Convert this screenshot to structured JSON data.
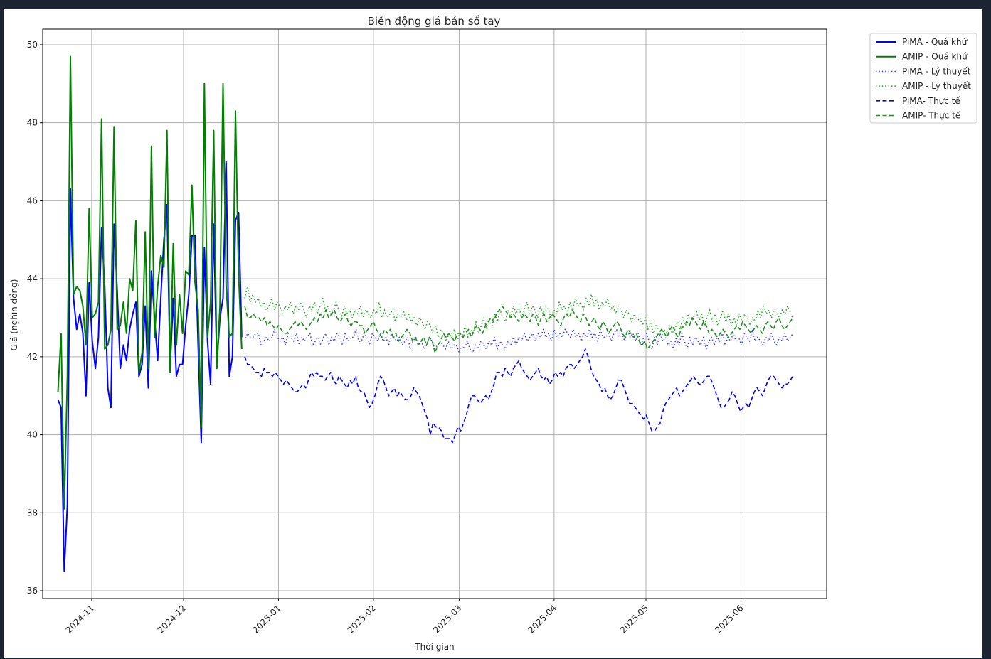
{
  "page": {
    "background": "#1b2430"
  },
  "chart_data": {
    "type": "line",
    "title": "Biến động giá bán sổ tay",
    "xlabel": "Thời gian",
    "ylabel": "Giá (nghìn đồng)",
    "xlim": [
      "2024-10-16",
      "2025-06-29"
    ],
    "ylim": [
      35.8,
      50.4
    ],
    "yticks": [
      36,
      38,
      40,
      42,
      44,
      46,
      48,
      50
    ],
    "ytick_labels": [
      "36",
      "38",
      "40",
      "42",
      "44",
      "46",
      "48",
      "50"
    ],
    "xticks": [
      "2024-11-01",
      "2024-12-01",
      "2025-01-01",
      "2025-02-01",
      "2025-03-01",
      "2025-04-01",
      "2025-05-01",
      "2025-06-01"
    ],
    "xtick_labels": [
      "2024-11",
      "2024-12",
      "2025-01",
      "2025-02",
      "2025-03",
      "2025-04",
      "2025-05",
      "2025-06"
    ],
    "grid": true,
    "legend_position": "outside-top-right",
    "series": [
      {
        "name": "PiMA - Quá khứ",
        "color": "#0000ff",
        "style": "solid",
        "start": "2024-10-21",
        "values": [
          40.9,
          40.7,
          36.5,
          38.2,
          46.3,
          43.5,
          42.7,
          43.1,
          42.6,
          41.0,
          43.9,
          42.4,
          41.7,
          42.5,
          45.3,
          43.8,
          41.2,
          40.7,
          45.4,
          43.7,
          41.7,
          42.3,
          41.9,
          42.7,
          43.1,
          43.4,
          41.5,
          41.8,
          43.3,
          41.2,
          44.2,
          43.0,
          41.9,
          43.5,
          45.0,
          45.9,
          41.7,
          43.5,
          41.5,
          41.8,
          41.8,
          42.8,
          43.6,
          45.1,
          45.1,
          42.3,
          39.8,
          44.8,
          42.4,
          41.3,
          45.4,
          41.8,
          43.0,
          43.5,
          47.0,
          41.5,
          42.0,
          45.5,
          45.7,
          42.5
        ]
      },
      {
        "name": "AMIP - Quá khứ",
        "color": "#008000",
        "style": "solid",
        "start": "2024-10-21",
        "values": [
          41.1,
          42.6,
          38.1,
          41.5,
          49.7,
          43.6,
          43.8,
          43.7,
          43.3,
          42.3,
          45.8,
          43.0,
          43.1,
          43.4,
          48.1,
          42.2,
          42.3,
          42.7,
          47.9,
          42.7,
          42.8,
          43.4,
          42.6,
          44.0,
          43.7,
          45.5,
          41.6,
          42.1,
          45.2,
          41.7,
          47.4,
          42.5,
          43.8,
          44.6,
          44.3,
          47.8,
          41.6,
          44.9,
          42.3,
          43.6,
          42.6,
          44.2,
          44.1,
          46.4,
          43.9,
          43.2,
          40.2,
          49.0,
          42.5,
          43.4,
          47.8,
          41.7,
          43.3,
          49.0,
          43.8,
          42.5,
          42.6,
          48.3,
          44.1,
          42.2
        ]
      },
      {
        "name": "PiMA - Lý thuyết",
        "color": "#3b3bff",
        "style": "dotted",
        "start": "2024-12-21",
        "values": [
          42.4,
          42.6,
          42.5,
          42.5,
          42.6,
          42.6,
          42.3,
          42.4,
          42.5,
          42.4,
          42.5,
          42.7,
          42.5,
          42.4,
          42.5,
          42.3,
          42.6,
          42.5,
          42.4,
          42.6,
          42.3,
          42.5,
          42.4,
          42.5,
          42.6,
          42.3,
          42.4,
          42.5,
          42.3,
          42.5,
          42.6,
          42.3,
          42.5,
          42.4,
          42.6,
          42.5,
          42.3,
          42.6,
          42.4,
          42.5,
          42.5,
          42.7,
          42.4,
          42.4,
          42.6,
          42.5,
          42.3,
          42.6,
          42.5,
          42.4,
          42.6,
          42.4,
          42.5,
          42.3,
          42.6,
          42.5,
          42.4,
          42.5,
          42.3,
          42.4,
          42.5,
          42.2,
          42.4,
          42.5,
          42.3,
          42.4,
          42.2,
          42.3,
          42.5,
          42.4,
          42.2,
          42.3,
          42.4,
          42.3,
          42.2,
          42.4,
          42.2,
          42.3,
          42.3,
          42.1,
          42.3,
          42.2,
          42.4,
          42.2,
          42.1,
          42.3,
          42.2,
          42.4,
          42.3,
          42.2,
          42.4,
          42.3,
          42.5,
          42.2,
          42.4,
          42.3,
          42.2,
          42.4,
          42.3,
          42.5,
          42.3,
          42.5,
          42.4,
          42.6,
          42.4,
          42.5,
          42.6,
          42.4,
          42.6,
          42.5,
          42.7,
          42.5,
          42.6,
          42.4,
          42.7,
          42.5,
          42.6,
          42.5,
          42.7,
          42.6,
          42.5,
          42.7,
          42.5,
          42.6,
          42.4,
          42.6,
          42.5,
          42.7,
          42.5,
          42.6,
          42.4,
          42.7,
          42.5,
          42.5,
          42.6,
          42.4,
          42.6,
          42.7,
          42.5,
          42.6,
          42.4,
          42.7,
          42.5,
          42.6,
          42.4,
          42.6,
          42.3,
          42.5,
          42.6,
          42.4,
          42.2,
          42.5,
          42.3,
          42.6,
          42.4,
          42.5,
          42.3,
          42.4,
          42.2,
          42.5,
          42.3,
          42.6,
          42.4,
          42.2,
          42.5,
          42.3,
          42.5,
          42.4,
          42.3,
          42.5,
          42.2,
          42.4,
          42.5,
          42.3,
          42.5,
          42.4,
          42.6,
          42.3,
          42.5,
          42.4,
          42.6,
          42.4,
          42.5,
          42.3,
          42.6,
          42.5,
          42.4,
          42.7,
          42.4,
          42.5,
          42.4,
          42.3,
          42.5,
          42.4,
          42.6,
          42.4,
          42.3,
          42.5,
          42.4,
          42.6,
          42.4,
          42.5,
          42.6
        ]
      },
      {
        "name": "AMIP - Lý thuyết",
        "color": "#22aa22",
        "style": "dotted",
        "start": "2024-12-21",
        "values": [
          43.5,
          43.8,
          43.4,
          43.6,
          43.4,
          43.5,
          43.3,
          43.4,
          43.2,
          43.3,
          43.5,
          43.2,
          43.4,
          43.3,
          43.1,
          43.3,
          43.2,
          43.4,
          43.1,
          43.3,
          43.2,
          43.4,
          43.2,
          43.0,
          43.3,
          43.2,
          43.4,
          43.1,
          43.3,
          43.5,
          43.2,
          43.3,
          43.1,
          43.2,
          43.4,
          43.2,
          43.0,
          43.3,
          43.1,
          43.2,
          43.0,
          43.2,
          43.1,
          43.3,
          43.0,
          43.2,
          43.1,
          43.0,
          43.2,
          43.1,
          43.4,
          43.0,
          43.2,
          43.0,
          43.1,
          43.2,
          42.9,
          43.1,
          43.0,
          43.2,
          42.9,
          43.1,
          42.9,
          43.0,
          42.8,
          43.0,
          42.9,
          42.7,
          42.9,
          42.8,
          42.6,
          42.8,
          42.5,
          42.7,
          42.6,
          42.4,
          42.6,
          42.5,
          42.7,
          42.4,
          42.6,
          42.5,
          42.8,
          42.5,
          42.7,
          42.6,
          42.9,
          42.6,
          42.8,
          43.0,
          42.7,
          42.9,
          42.8,
          43.1,
          42.9,
          43.2,
          43.0,
          42.9,
          43.2,
          43.0,
          43.3,
          43.1,
          43.3,
          43.0,
          43.2,
          43.4,
          43.1,
          43.3,
          43.2,
          43.0,
          43.3,
          43.1,
          43.3,
          43.2,
          43.0,
          43.2,
          43.1,
          43.4,
          43.2,
          43.3,
          43.1,
          43.4,
          43.2,
          43.5,
          43.3,
          43.4,
          43.2,
          43.5,
          43.3,
          43.6,
          43.3,
          43.5,
          43.2,
          43.4,
          43.3,
          43.5,
          43.2,
          43.3,
          43.1,
          43.3,
          43.2,
          43.0,
          43.2,
          43.1,
          42.9,
          43.1,
          42.9,
          43.0,
          42.8,
          43.0,
          42.7,
          42.9,
          42.6,
          42.8,
          42.7,
          42.5,
          42.7,
          42.6,
          42.8,
          42.6,
          42.7,
          42.9,
          42.7,
          43.0,
          42.8,
          43.1,
          42.9,
          43.0,
          43.2,
          42.9,
          43.1,
          42.8,
          43.0,
          43.2,
          42.9,
          43.1,
          42.8,
          43.0,
          43.2,
          42.9,
          43.1,
          42.8,
          43.0,
          42.8,
          43.1,
          42.9,
          43.1,
          43.0,
          42.8,
          43.0,
          42.9,
          43.2,
          43.0,
          43.3,
          43.1,
          43.2,
          43.0,
          43.2,
          43.1,
          43.0,
          43.2,
          43.1,
          43.3,
          43.1,
          43.0
        ]
      },
      {
        "name": "PiMA- Thực tế",
        "color": "#0000ff",
        "style": "dashed",
        "start": "2024-12-21",
        "values": [
          42.0,
          41.8,
          41.8,
          41.7,
          41.6,
          41.6,
          41.5,
          41.7,
          41.6,
          41.6,
          41.5,
          41.6,
          41.5,
          41.4,
          41.3,
          41.4,
          41.3,
          41.2,
          41.1,
          41.1,
          41.2,
          41.3,
          41.2,
          41.4,
          41.6,
          41.5,
          41.6,
          41.5,
          41.5,
          41.4,
          41.5,
          41.6,
          41.4,
          41.3,
          41.5,
          41.4,
          41.3,
          41.2,
          41.4,
          41.3,
          41.5,
          41.2,
          41.1,
          41.1,
          40.9,
          40.7,
          40.8,
          41.0,
          41.3,
          41.5,
          41.4,
          41.2,
          41.0,
          41.1,
          41.2,
          41.0,
          41.1,
          41.0,
          40.9,
          40.9,
          41.0,
          41.2,
          41.1,
          41.0,
          40.8,
          40.6,
          40.4,
          40.0,
          40.3,
          40.2,
          40.2,
          40.1,
          39.9,
          39.9,
          39.9,
          39.8,
          40.0,
          40.2,
          40.1,
          40.3,
          40.5,
          40.8,
          41.0,
          41.0,
          40.9,
          40.8,
          40.9,
          41.0,
          40.9,
          41.1,
          41.3,
          41.6,
          41.6,
          41.5,
          41.7,
          41.6,
          41.5,
          41.7,
          41.8,
          41.9,
          41.7,
          41.6,
          41.5,
          41.4,
          41.5,
          41.6,
          41.7,
          41.5,
          41.4,
          41.5,
          41.3,
          41.4,
          41.6,
          41.5,
          41.6,
          41.5,
          41.7,
          41.8,
          41.8,
          41.7,
          41.8,
          41.9,
          42.0,
          42.2,
          42.0,
          41.7,
          41.5,
          41.4,
          41.3,
          41.1,
          41.2,
          41.0,
          40.9,
          41.0,
          41.2,
          41.4,
          41.4,
          41.2,
          41.0,
          40.8,
          40.8,
          40.7,
          40.6,
          40.5,
          40.4,
          40.5,
          40.3,
          40.1,
          40.1,
          40.2,
          40.3,
          40.6,
          40.8,
          40.9,
          41.0,
          41.1,
          41.2,
          41.0,
          41.1,
          41.2,
          41.3,
          41.4,
          41.5,
          41.4,
          41.3,
          41.3,
          41.4,
          41.5,
          41.5,
          41.3,
          41.1,
          40.9,
          40.7,
          40.7,
          40.8,
          40.9,
          41.1,
          41.0,
          40.8,
          40.6,
          40.7,
          40.8,
          40.7,
          40.9,
          41.1,
          41.2,
          41.1,
          41.0,
          41.2,
          41.4,
          41.5,
          41.5,
          41.4,
          41.3,
          41.2,
          41.3,
          41.3,
          41.4,
          41.5
        ]
      },
      {
        "name": "AMIP- Thực tế",
        "color": "#1f8f1f",
        "style": "dashed",
        "start": "2024-12-21",
        "values": [
          43.3,
          43.0,
          43.0,
          43.1,
          43.0,
          43.0,
          42.9,
          43.0,
          42.8,
          42.9,
          42.8,
          42.7,
          42.8,
          42.7,
          42.6,
          42.6,
          42.7,
          42.8,
          42.9,
          42.8,
          42.9,
          42.8,
          42.7,
          42.8,
          42.9,
          43.0,
          42.9,
          43.1,
          43.0,
          43.2,
          43.0,
          43.1,
          43.2,
          43.0,
          42.9,
          43.0,
          43.1,
          42.9,
          42.8,
          42.9,
          42.9,
          42.8,
          42.8,
          42.6,
          42.7,
          42.8,
          42.9,
          42.7,
          42.6,
          42.5,
          42.7,
          42.6,
          42.7,
          42.5,
          42.6,
          42.4,
          42.5,
          42.6,
          42.7,
          42.6,
          42.4,
          42.5,
          42.3,
          42.4,
          42.5,
          42.3,
          42.5,
          42.4,
          42.1,
          42.3,
          42.4,
          42.6,
          42.5,
          42.6,
          42.5,
          42.4,
          42.6,
          42.6,
          42.5,
          42.6,
          42.7,
          42.5,
          42.7,
          42.8,
          42.7,
          42.6,
          42.8,
          42.9,
          43.0,
          42.9,
          43.1,
          43.2,
          43.3,
          43.2,
          43.1,
          43.0,
          43.1,
          43.0,
          42.9,
          43.0,
          43.1,
          43.0,
          42.9,
          43.1,
          43.0,
          42.8,
          43.0,
          43.1,
          42.9,
          43.0,
          43.1,
          43.0,
          42.9,
          42.8,
          43.0,
          43.1,
          43.0,
          43.2,
          43.1,
          43.0,
          42.9,
          43.1,
          43.0,
          42.8,
          42.9,
          43.0,
          42.8,
          42.7,
          42.9,
          42.8,
          42.6,
          42.7,
          42.8,
          42.9,
          42.8,
          42.6,
          42.5,
          42.7,
          42.6,
          42.5,
          42.6,
          42.4,
          42.3,
          42.4,
          42.2,
          42.3,
          42.4,
          42.5,
          42.6,
          42.7,
          42.6,
          42.5,
          42.7,
          42.8,
          42.6,
          42.5,
          42.7,
          42.8,
          42.9,
          42.8,
          43.0,
          42.9,
          42.8,
          42.7,
          42.9,
          42.8,
          42.6,
          42.7,
          42.6,
          42.5,
          42.6,
          42.7,
          42.6,
          42.5,
          42.6,
          42.7,
          42.8,
          42.7,
          42.9,
          42.8,
          42.7,
          42.6,
          42.7,
          42.8,
          42.7,
          42.6,
          42.8,
          42.9,
          42.8,
          42.7,
          42.9,
          43.0,
          42.8,
          42.7,
          42.8,
          42.9,
          43.0
        ]
      }
    ]
  }
}
